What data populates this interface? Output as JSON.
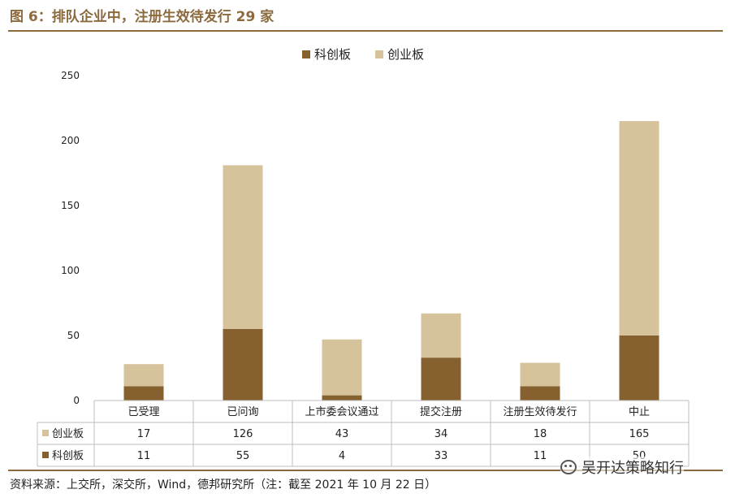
{
  "title": "图 6：排队企业中，注册生效待发行 29 家",
  "source": "资料来源：上交所，深交所，Wind，德邦研究所（注：截至 2021 年 10 月 22 日）",
  "watermark": "吴开达策略知行",
  "colors": {
    "brand": "#8b6a3e",
    "kcb": "#86602f",
    "cyb": "#d6c29b"
  },
  "chart_data": {
    "type": "bar",
    "stacked": true,
    "categories": [
      "已受理",
      "已问询",
      "上市委会议通过",
      "提交注册",
      "注册生效待发行",
      "中止"
    ],
    "series": [
      {
        "name": "科创板",
        "values": [
          11,
          55,
          4,
          33,
          11,
          50
        ],
        "color": "#86602f"
      },
      {
        "name": "创业板",
        "values": [
          17,
          126,
          43,
          34,
          18,
          165
        ],
        "color": "#d6c29b"
      }
    ],
    "ylim": [
      0,
      250
    ],
    "yticks": [
      "0",
      "50",
      "100",
      "150",
      "200",
      "250"
    ],
    "legend_position": "top-center",
    "data_table": true,
    "table_rows": [
      {
        "name": "创业板",
        "values": [
          "17",
          "126",
          "43",
          "34",
          "18",
          "165"
        ]
      },
      {
        "name": "科创板",
        "values": [
          "11",
          "55",
          "4",
          "33",
          "11",
          "50"
        ]
      }
    ]
  }
}
